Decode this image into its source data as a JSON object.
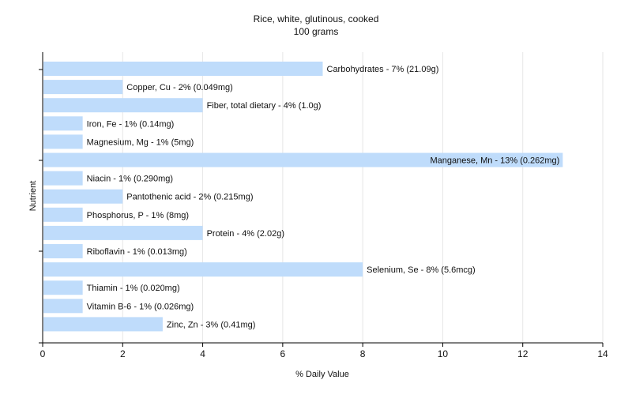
{
  "chart_data": {
    "type": "bar",
    "orientation": "horizontal",
    "title": "Rice, white, glutinous, cooked",
    "subtitle": "100 grams",
    "xlabel": "% Daily Value",
    "ylabel": "Nutrient",
    "xlim": [
      0,
      14
    ],
    "xticks": [
      0,
      2,
      4,
      6,
      8,
      10,
      12,
      14
    ],
    "grid": "vertical",
    "bar_color": "#bfdcfb",
    "categories": [
      "Carbohydrates",
      "Copper, Cu",
      "Fiber, total dietary",
      "Iron, Fe",
      "Magnesium, Mg",
      "Manganese, Mn",
      "Niacin",
      "Pantothenic acid",
      "Phosphorus, P",
      "Protein",
      "Riboflavin",
      "Selenium, Se",
      "Thiamin",
      "Vitamin B-6",
      "Zinc, Zn"
    ],
    "values": [
      7,
      2,
      4,
      1,
      1,
      13,
      1,
      2,
      1,
      4,
      1,
      8,
      1,
      1,
      3
    ],
    "labels": [
      "Carbohydrates - 7% (21.09g)",
      "Copper, Cu - 2% (0.049mg)",
      "Fiber, total dietary - 4% (1.0g)",
      "Iron, Fe - 1% (0.14mg)",
      "Magnesium, Mg - 1% (5mg)",
      "Manganese, Mn - 13% (0.262mg)",
      "Niacin - 1% (0.290mg)",
      "Pantothenic acid - 2% (0.215mg)",
      "Phosphorus, P - 1% (8mg)",
      "Protein - 4% (2.02g)",
      "Riboflavin - 1% (0.013mg)",
      "Selenium, Se - 8% (5.6mcg)",
      "Thiamin - 1% (0.020mg)",
      "Vitamin B-6 - 1% (0.026mg)",
      "Zinc, Zn - 3% (0.41mg)"
    ]
  }
}
